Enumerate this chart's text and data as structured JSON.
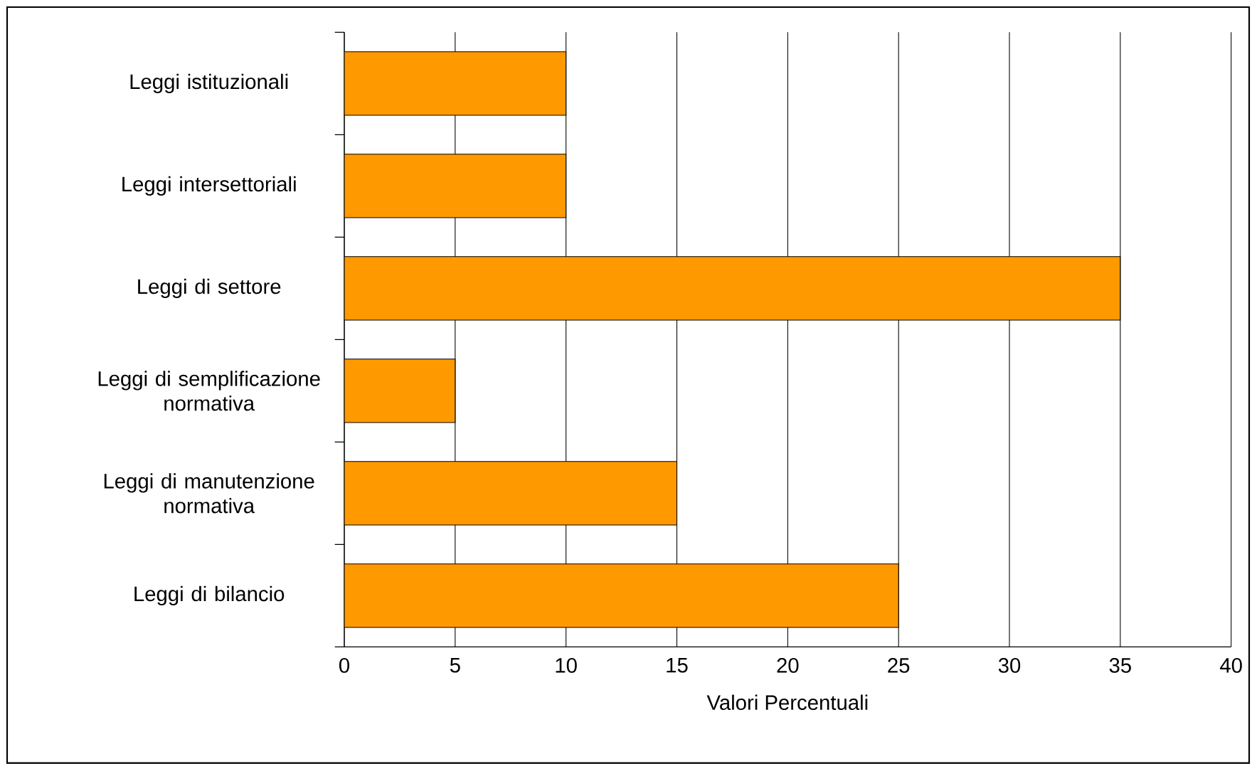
{
  "chart_data": {
    "type": "bar",
    "orientation": "horizontal",
    "xlabel": "Valori Percentuali",
    "categories": [
      "Leggi istituzionali",
      "Leggi intersettoriali",
      "Leggi di settore",
      "Leggi di semplificazione normativa",
      "Leggi di manutenzione normativa",
      "Leggi di bilancio"
    ],
    "values": [
      10,
      10,
      35,
      5,
      15,
      25
    ],
    "color": "#ff9900",
    "xlim": [
      0,
      40
    ],
    "xticks": [
      0,
      5,
      10,
      15,
      20,
      25,
      30,
      35,
      40
    ],
    "grid": "x"
  }
}
